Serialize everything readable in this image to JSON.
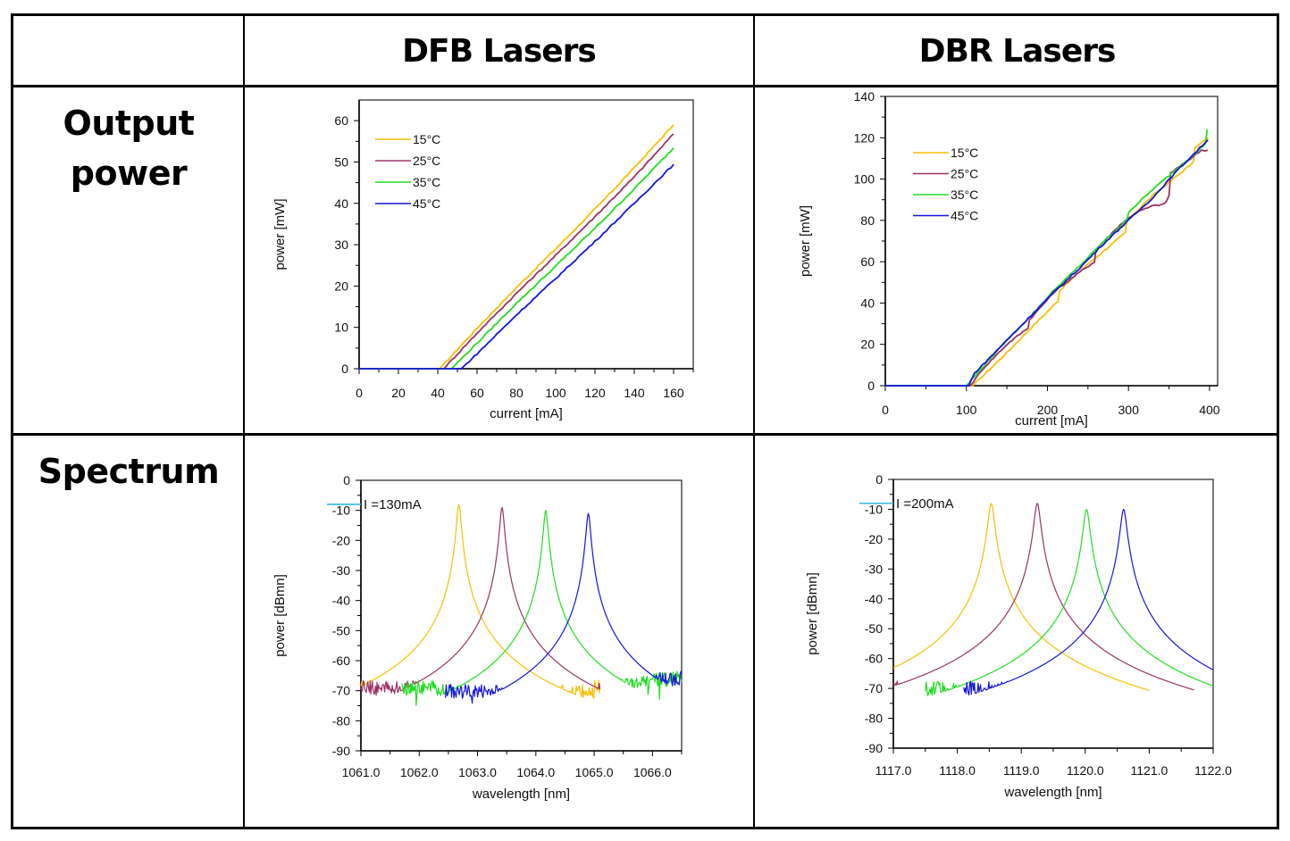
{
  "table": {
    "columns": [
      "",
      "DFB Lasers",
      "DBR Lasers"
    ],
    "rows": [
      "Output power",
      "Spectrum"
    ],
    "row_lines": {
      "output_power": [
        "Output",
        "power"
      ],
      "spectrum": [
        "Spectrum"
      ]
    }
  },
  "colors": {
    "15C": "#F5C000",
    "25C": "#993366",
    "35C": "#22DD22",
    "45C": "#1515E0",
    "marker": "#33BBDD",
    "axis": "#000000"
  },
  "chart_data": [
    {
      "id": "dfb-output",
      "type": "line",
      "panel": "DFB Lasers / Output power",
      "xlabel": "current [mA]",
      "ylabel": "power [mW]",
      "xlim": [
        0,
        170
      ],
      "ylim": [
        0,
        65
      ],
      "xticks": [
        0,
        20,
        40,
        60,
        80,
        100,
        120,
        140,
        160
      ],
      "yticks": [
        0,
        10,
        20,
        30,
        40,
        50,
        60
      ],
      "legend_position": "top-left",
      "series": [
        {
          "name": "15°C",
          "color_key": "15C",
          "points": [
            [
              0,
              0
            ],
            [
              41,
              0
            ],
            [
              60,
              9.8
            ],
            [
              80,
              19.6
            ],
            [
              100,
              29
            ],
            [
              120,
              38.6
            ],
            [
              140,
              48.6
            ],
            [
              160,
              59
            ]
          ]
        },
        {
          "name": "25°C",
          "color_key": "25C",
          "points": [
            [
              0,
              0
            ],
            [
              43,
              0
            ],
            [
              60,
              8.6
            ],
            [
              80,
              18.2
            ],
            [
              100,
              27.4
            ],
            [
              120,
              36.8
            ],
            [
              140,
              46.4
            ],
            [
              160,
              56.8
            ]
          ]
        },
        {
          "name": "35°C",
          "color_key": "35C",
          "points": [
            [
              0,
              0
            ],
            [
              47,
              0
            ],
            [
              60,
              6.2
            ],
            [
              80,
              15.8
            ],
            [
              100,
              24.8
            ],
            [
              120,
              34
            ],
            [
              140,
              43.5
            ],
            [
              160,
              53.4
            ]
          ]
        },
        {
          "name": "45°C",
          "color_key": "45C",
          "points": [
            [
              0,
              0
            ],
            [
              52,
              0
            ],
            [
              60,
              3.6
            ],
            [
              80,
              13
            ],
            [
              100,
              21.8
            ],
            [
              120,
              30.8
            ],
            [
              140,
              40
            ],
            [
              160,
              49.4
            ]
          ]
        }
      ]
    },
    {
      "id": "dbr-output",
      "type": "line",
      "panel": "DBR Lasers / Output power",
      "xlabel": "current [mA]",
      "ylabel": "power [mW]",
      "xlim": [
        0,
        410
      ],
      "ylim": [
        0,
        140
      ],
      "xticks": [
        0,
        100,
        200,
        300,
        400
      ],
      "yticks": [
        0,
        20,
        40,
        60,
        80,
        100,
        120,
        140
      ],
      "legend_position": "top-left",
      "series": [
        {
          "name": "15°C",
          "color_key": "15C",
          "points": [
            [
              0,
              0
            ],
            [
              108,
              0
            ],
            [
              150,
              16
            ],
            [
              180,
              28
            ],
            [
              213,
              41
            ],
            [
              215,
              46
            ],
            [
              250,
              59
            ],
            [
              260,
              62
            ],
            [
              296,
              74
            ],
            [
              298,
              80
            ],
            [
              330,
              92
            ],
            [
              380,
              108
            ],
            [
              382,
              115
            ],
            [
              398,
              120
            ]
          ]
        },
        {
          "name": "25°C",
          "color_key": "25C",
          "points": [
            [
              0,
              0
            ],
            [
              105,
              0
            ],
            [
              120,
              8
            ],
            [
              150,
              20
            ],
            [
              176,
              28
            ],
            [
              178,
              32
            ],
            [
              210,
              46
            ],
            [
              240,
              55
            ],
            [
              258,
              60
            ],
            [
              260,
              66
            ],
            [
              290,
              78
            ],
            [
              310,
              84
            ],
            [
              330,
              87
            ],
            [
              345,
              88
            ],
            [
              350,
              92
            ],
            [
              352,
              103
            ],
            [
              370,
              108
            ],
            [
              390,
              114
            ],
            [
              398,
              114
            ]
          ]
        },
        {
          "name": "35°C",
          "color_key": "35C",
          "points": [
            [
              0,
              0
            ],
            [
              100,
              0
            ],
            [
              120,
              9
            ],
            [
              150,
              22
            ],
            [
              180,
              34
            ],
            [
              210,
              47
            ],
            [
              240,
              58
            ],
            [
              270,
              70
            ],
            [
              298,
              80
            ],
            [
              300,
              84
            ],
            [
              330,
              95
            ],
            [
              360,
              105
            ],
            [
              395,
              117
            ],
            [
              397,
              124
            ]
          ]
        },
        {
          "name": "45°C",
          "color_key": "45C",
          "points": [
            [
              0,
              0
            ],
            [
              103,
              0
            ],
            [
              110,
              6
            ],
            [
              150,
              22
            ],
            [
              180,
              34
            ],
            [
              210,
              46
            ],
            [
              240,
              57
            ],
            [
              270,
              69
            ],
            [
              300,
              80
            ],
            [
              330,
              91
            ],
            [
              360,
              104
            ],
            [
              398,
              119
            ]
          ]
        }
      ]
    },
    {
      "id": "dfb-spectrum",
      "type": "line",
      "panel": "DFB Lasers / Spectrum",
      "annotation": "I =130mA",
      "xlabel": "wavelength [nm]",
      "ylabel": "power [dBmn]",
      "xlim": [
        1061.0,
        1066.5
      ],
      "ylim": [
        -90,
        0
      ],
      "xticks": [
        1061.0,
        1062.0,
        1063.0,
        1064.0,
        1065.0,
        1066.0
      ],
      "xtick_labels": [
        "1061.0",
        "1062.0",
        "1063.0",
        "1064.0",
        "1065.0",
        "1066.0"
      ],
      "yticks": [
        0,
        -10,
        -20,
        -30,
        -40,
        -50,
        -60,
        -70,
        -80,
        -90
      ],
      "noise_floor_dBm": -69,
      "series": [
        {
          "name": "15°C",
          "color_key": "15C",
          "peak_nm": 1062.68,
          "peak_dBm": -8,
          "range_nm": [
            1061.0,
            1065.1
          ]
        },
        {
          "name": "25°C",
          "color_key": "25C",
          "peak_nm": 1063.42,
          "peak_dBm": -9,
          "range_nm": [
            1061.0,
            1065.1
          ]
        },
        {
          "name": "35°C",
          "color_key": "35C",
          "peak_nm": 1064.17,
          "peak_dBm": -10,
          "range_nm": [
            1061.7,
            1066.5
          ]
        },
        {
          "name": "45°C",
          "color_key": "45C",
          "peak_nm": 1064.9,
          "peak_dBm": -11,
          "range_nm": [
            1062.45,
            1066.5
          ]
        }
      ]
    },
    {
      "id": "dbr-spectrum",
      "type": "line",
      "panel": "DBR Lasers / Spectrum",
      "annotation": "I =200mA",
      "xlabel": "wavelength [nm]",
      "ylabel": "power [dBmn]",
      "xlim": [
        1117.0,
        1122.0
      ],
      "ylim": [
        -90,
        0
      ],
      "xticks": [
        1117.0,
        1118.0,
        1119.0,
        1120.0,
        1121.0,
        1122.0
      ],
      "xtick_labels": [
        "1117.0",
        "1118.0",
        "1119.0",
        "1120.0",
        "1121.0",
        "1122.0"
      ],
      "yticks": [
        0,
        -10,
        -20,
        -30,
        -40,
        -50,
        -60,
        -70,
        -80,
        -90
      ],
      "noise_floor_dBm": -70,
      "series": [
        {
          "name": "15°C",
          "color_key": "15C",
          "peak_nm": 1118.53,
          "peak_dBm": -8,
          "range_nm": [
            1117.0,
            1121.0
          ]
        },
        {
          "name": "25°C",
          "color_key": "25C",
          "peak_nm": 1119.25,
          "peak_dBm": -8,
          "range_nm": [
            1117.0,
            1121.7
          ]
        },
        {
          "name": "35°C",
          "color_key": "35C",
          "peak_nm": 1120.02,
          "peak_dBm": -10,
          "range_nm": [
            1117.5,
            1122.0
          ]
        },
        {
          "name": "45°C",
          "color_key": "45C",
          "peak_nm": 1120.6,
          "peak_dBm": -10,
          "range_nm": [
            1118.1,
            1122.0
          ]
        }
      ]
    }
  ]
}
